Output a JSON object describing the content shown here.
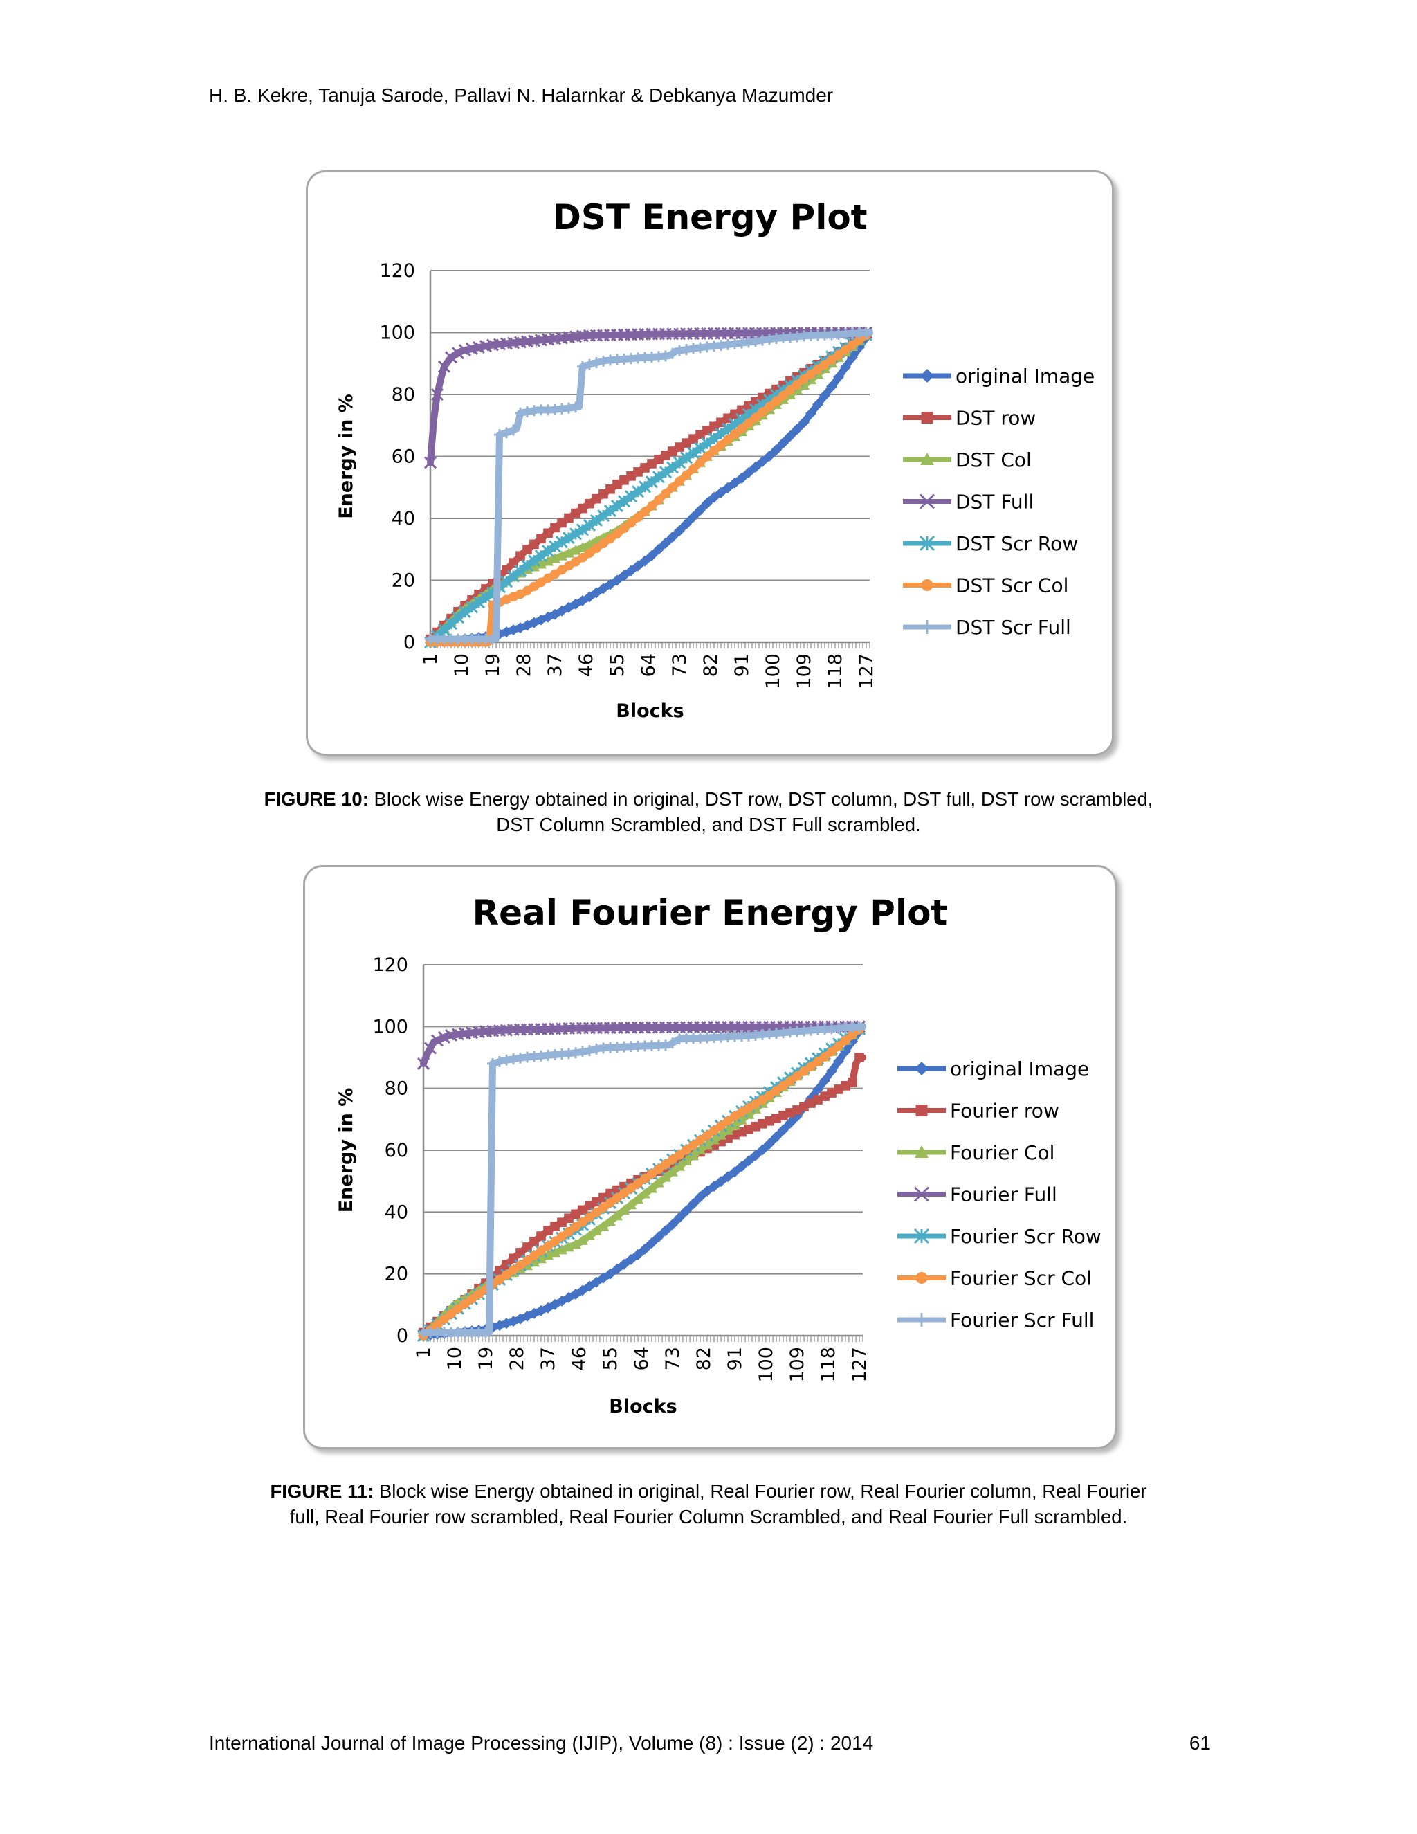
{
  "header": {
    "authors": "H. B. Kekre, Tanuja Sarode, Pallavi N. Halarnkar & Debkanya Mazumder"
  },
  "figures": [
    {
      "caption_label": "FIGURE 10:",
      "caption_line1": " Block wise Energy obtained in original, DST row, DST column, DST full, DST row scrambled,",
      "caption_line2": "DST Column Scrambled, and  DST Full scrambled."
    },
    {
      "caption_label": "FIGURE 11:",
      "caption_line1": " Block wise Energy obtained in original, Real Fourier row, Real Fourier column, Real Fourier",
      "caption_line2": "full, Real Fourier row scrambled, Real Fourier Column Scrambled, and  Real Fourier Full scrambled."
    }
  ],
  "footer": {
    "journal": "International Journal of Image Processing (IJIP), Volume (8) : Issue (2) : 2014",
    "page": "61"
  },
  "colors": {
    "original": "#4472c4",
    "row": "#c0504d",
    "col": "#9bbb59",
    "full": "#8064a2",
    "scr_row": "#4bacc6",
    "scr_col": "#f79646",
    "scr_full": "#95b3d7"
  },
  "chart_data": [
    {
      "type": "line",
      "title": "DST Energy Plot",
      "xlabel": "Blocks",
      "ylabel": "Energy in %",
      "ylim": [
        0,
        120
      ],
      "yticks": [
        0,
        20,
        40,
        60,
        80,
        100,
        120
      ],
      "xlim": [
        1,
        128
      ],
      "xticks": [
        "1",
        "10",
        "19",
        "28",
        "37",
        "46",
        "55",
        "64",
        "73",
        "82",
        "91",
        "100",
        "109",
        "118",
        "127"
      ],
      "legend": "right",
      "grid": "horizontal",
      "series": [
        {
          "name": "original Image",
          "marker": "diamond",
          "x": [
            1,
            10,
            19,
            28,
            37,
            46,
            55,
            64,
            73,
            82,
            91,
            100,
            109,
            118,
            128
          ],
          "y": [
            0,
            1,
            2,
            5,
            9,
            14,
            20,
            27,
            36,
            46,
            53,
            61,
            71,
            84,
            100
          ]
        },
        {
          "name": "DST row",
          "marker": "square",
          "x": [
            1,
            10,
            19,
            28,
            37,
            46,
            55,
            64,
            73,
            82,
            91,
            100,
            109,
            118,
            128
          ],
          "y": [
            1,
            11,
            19,
            29,
            37,
            44,
            51,
            57,
            63,
            69,
            75,
            81,
            87,
            93,
            100
          ]
        },
        {
          "name": "DST Col",
          "marker": "triangle",
          "x": [
            1,
            10,
            19,
            28,
            37,
            46,
            55,
            64,
            73,
            82,
            91,
            100,
            109,
            118,
            128
          ],
          "y": [
            0,
            10,
            17,
            23,
            27,
            31,
            36,
            43,
            52,
            61,
            68,
            76,
            83,
            91,
            100
          ]
        },
        {
          "name": "DST Full",
          "marker": "x",
          "x": [
            1,
            2,
            3,
            4,
            5,
            7,
            10,
            14,
            19,
            28,
            37,
            46,
            64,
            91,
            128
          ],
          "y": [
            58,
            72,
            80,
            85,
            89,
            92,
            94,
            95,
            96,
            97,
            98,
            99,
            99.5,
            99.8,
            100
          ]
        },
        {
          "name": "DST Scr Row",
          "marker": "asterisk",
          "x": [
            1,
            10,
            19,
            28,
            37,
            46,
            55,
            64,
            73,
            82,
            91,
            100,
            109,
            118,
            128
          ],
          "y": [
            0,
            9,
            16,
            24,
            31,
            37,
            44,
            51,
            58,
            65,
            72,
            79,
            86,
            93,
            100
          ]
        },
        {
          "name": "DST Scr Col",
          "marker": "circle",
          "x": [
            1,
            10,
            18,
            19,
            28,
            37,
            46,
            55,
            64,
            73,
            82,
            91,
            100,
            109,
            118,
            128
          ],
          "y": [
            0,
            0,
            0,
            12,
            16,
            22,
            28,
            35,
            43,
            52,
            61,
            69,
            77,
            85,
            92,
            100
          ]
        },
        {
          "name": "DST Scr Full",
          "marker": "plus",
          "x": [
            1,
            10,
            20,
            21,
            24,
            26,
            27,
            32,
            36,
            44,
            45,
            48,
            52,
            58,
            64,
            70,
            72,
            78,
            86,
            94,
            100,
            110,
            120,
            128
          ],
          "y": [
            1,
            1,
            1,
            67,
            68,
            69,
            74,
            75,
            75,
            76,
            89,
            90,
            91,
            91.5,
            92,
            92.5,
            94,
            95,
            96,
            97,
            98,
            99,
            99.5,
            100
          ]
        }
      ]
    },
    {
      "type": "line",
      "title": "Real Fourier Energy Plot",
      "xlabel": "Blocks",
      "ylabel": "Energy in %",
      "ylim": [
        0,
        120
      ],
      "yticks": [
        0,
        20,
        40,
        60,
        80,
        100,
        120
      ],
      "xlim": [
        1,
        128
      ],
      "xticks": [
        "1",
        "10",
        "19",
        "28",
        "37",
        "46",
        "55",
        "64",
        "73",
        "82",
        "91",
        "100",
        "109",
        "118",
        "127"
      ],
      "legend": "right",
      "grid": "horizontal",
      "series": [
        {
          "name": "original Image",
          "marker": "diamond",
          "x": [
            1,
            10,
            19,
            28,
            37,
            46,
            55,
            64,
            73,
            82,
            91,
            100,
            109,
            118,
            128
          ],
          "y": [
            0,
            1,
            2,
            5,
            9,
            14,
            20,
            27,
            36,
            46,
            53,
            61,
            71,
            84,
            100
          ]
        },
        {
          "name": "Fourier row",
          "marker": "square",
          "x": [
            1,
            10,
            19,
            28,
            37,
            46,
            55,
            64,
            73,
            82,
            91,
            100,
            109,
            118,
            125,
            126,
            127,
            128
          ],
          "y": [
            1,
            9,
            17,
            26,
            34,
            40,
            46,
            51,
            55,
            60,
            65,
            69,
            73,
            78,
            82,
            88,
            90,
            90
          ]
        },
        {
          "name": "Fourier Col",
          "marker": "triangle",
          "x": [
            1,
            10,
            19,
            28,
            37,
            46,
            55,
            64,
            73,
            82,
            91,
            100,
            109,
            118,
            128
          ],
          "y": [
            0,
            10,
            16,
            21,
            26,
            30,
            37,
            45,
            53,
            61,
            68,
            76,
            84,
            91,
            100
          ]
        },
        {
          "name": "Fourier Full",
          "marker": "x",
          "x": [
            1,
            2,
            3,
            4,
            6,
            8,
            11,
            15,
            20,
            28,
            37,
            46,
            64,
            91,
            128
          ],
          "y": [
            88,
            91,
            93,
            95,
            96,
            97,
            97.5,
            98,
            98.5,
            99,
            99.2,
            99.5,
            99.7,
            99.9,
            100
          ]
        },
        {
          "name": "Fourier Scr Row",
          "marker": "asterisk",
          "x": [
            1,
            10,
            19,
            28,
            37,
            46,
            55,
            64,
            73,
            82,
            91,
            100,
            109,
            118,
            128
          ],
          "y": [
            0,
            8,
            15,
            22,
            29,
            35,
            43,
            50,
            57,
            64,
            71,
            78,
            85,
            92,
            100
          ]
        },
        {
          "name": "Fourier Scr Col",
          "marker": "circle",
          "x": [
            1,
            10,
            19,
            28,
            37,
            46,
            55,
            64,
            73,
            82,
            91,
            100,
            109,
            118,
            128
          ],
          "y": [
            0,
            8,
            15,
            22,
            29,
            36,
            43,
            50,
            57,
            64,
            71,
            77,
            84,
            91,
            100
          ]
        },
        {
          "name": "Fourier Scr Full",
          "marker": "plus",
          "x": [
            1,
            10,
            20,
            21,
            24,
            30,
            40,
            45,
            48,
            52,
            60,
            72,
            75,
            85,
            95,
            105,
            115,
            128
          ],
          "y": [
            1,
            1,
            1,
            88,
            89,
            90,
            91,
            91.5,
            92,
            93,
            93.5,
            94,
            96,
            96.5,
            97,
            98,
            99,
            100
          ]
        }
      ]
    }
  ]
}
